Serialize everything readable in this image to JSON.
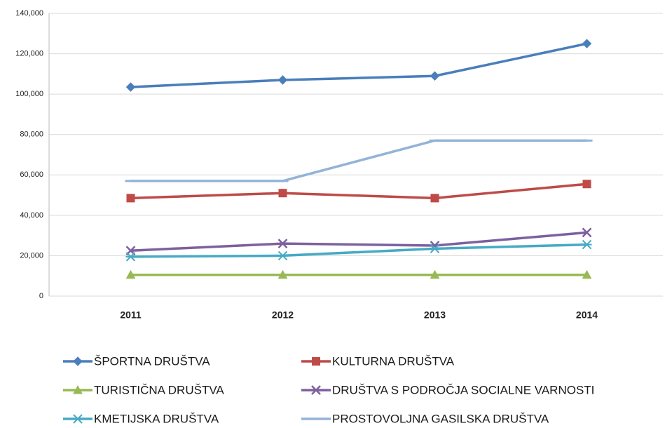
{
  "chart_data": {
    "type": "line",
    "categories": [
      "2011",
      "2012",
      "2013",
      "2014"
    ],
    "series": [
      {
        "name": "ŠPORTNA DRUŠTVA",
        "color": "#4a7ebb",
        "marker": "diamond",
        "values": [
          103500,
          107000,
          109000,
          125000
        ]
      },
      {
        "name": "KULTURNA DRUŠTVA",
        "color": "#be4b48",
        "marker": "square",
        "values": [
          48500,
          51000,
          48500,
          55500
        ]
      },
      {
        "name": "TURISTIČNA DRUŠTVA",
        "color": "#98b954",
        "marker": "triangle",
        "values": [
          10500,
          10500,
          10500,
          10500
        ]
      },
      {
        "name": "DRUŠTVA S PODROČJA SOCIALNE VARNOSTI",
        "color": "#7d60a0",
        "marker": "x",
        "values": [
          22500,
          26000,
          25000,
          31500
        ]
      },
      {
        "name": "KMETIJSKA DRUŠTVA",
        "color": "#46aac5",
        "marker": "star",
        "values": [
          19500,
          20000,
          23500,
          25500
        ]
      },
      {
        "name": "PROSTOVOLJNA GASILSKA DRUŠTVA",
        "color": "#93b3d7",
        "marker": "dash",
        "values": [
          57000,
          57000,
          77000,
          77000
        ]
      }
    ],
    "ylim": [
      0,
      140000
    ],
    "yticks": [
      0,
      {
        "value": 20000,
        "label": "20,000"
      },
      {
        "value": 40000,
        "label": "40,000"
      },
      {
        "value": 60000,
        "label": "60,000"
      },
      {
        "value": 80000,
        "label": "80,000"
      },
      {
        "value": 100000,
        "label": "100,000"
      },
      {
        "value": 120000,
        "label": "120,000"
      },
      {
        "value": 140000,
        "label": "140,000"
      }
    ],
    "grid": true
  }
}
